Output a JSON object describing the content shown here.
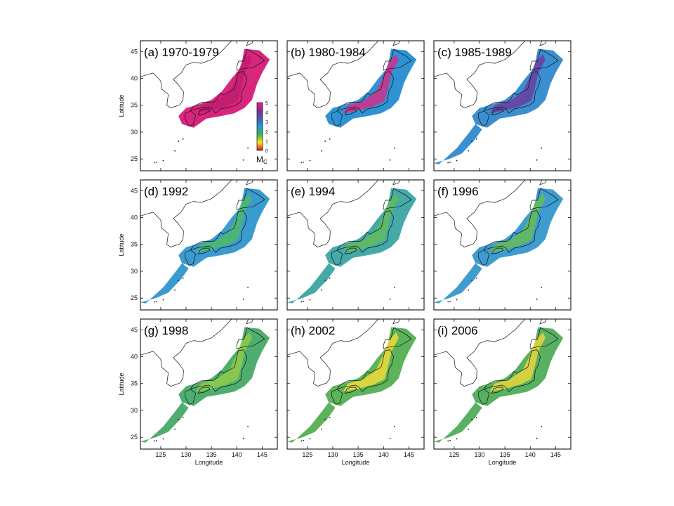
{
  "figure": {
    "x_axis_label": "Longitude",
    "y_axis_label": "Latitude",
    "x_ticks": [
      125,
      130,
      135,
      140,
      145
    ],
    "y_ticks": [
      25,
      30,
      35,
      40,
      45
    ],
    "lon_range": [
      121,
      148
    ],
    "lat_range": [
      22.8,
      47
    ]
  },
  "colorbar": {
    "label": "M",
    "label_sub": "C",
    "ticks": [
      "0",
      "1",
      "2",
      "3",
      "4",
      "5"
    ],
    "stops": [
      "#e8102a",
      "#f7e81c",
      "#3cb04a",
      "#1f9ad6",
      "#3f5fb0",
      "#8a2b8e",
      "#e81f8c"
    ]
  },
  "panels": [
    {
      "title": "(a) 1970-1979",
      "color": "#d8267e",
      "tone": "#c01f6e"
    },
    {
      "title": "(b) 1980-1984",
      "color": "#2f93d3",
      "tone": "#d32f8a"
    },
    {
      "title": "(c) 1985-1989",
      "color": "#3b8fd0",
      "tone": "#6c3ea0"
    },
    {
      "title": "(d) 1992",
      "color": "#3a9bd0",
      "tone": "#4fb86a"
    },
    {
      "title": "(e) 1994",
      "color": "#45a9a8",
      "tone": "#62bb5c"
    },
    {
      "title": "(f) 1996",
      "color": "#3f9ccf",
      "tone": "#66bd55"
    },
    {
      "title": "(g) 1998",
      "color": "#4fae6f",
      "tone": "#8ecb4a"
    },
    {
      "title": "(h) 2002",
      "color": "#5cb35a",
      "tone": "#f0d93a"
    },
    {
      "title": "(i) 2006",
      "color": "#58b161",
      "tone": "#e8d63c"
    }
  ]
}
